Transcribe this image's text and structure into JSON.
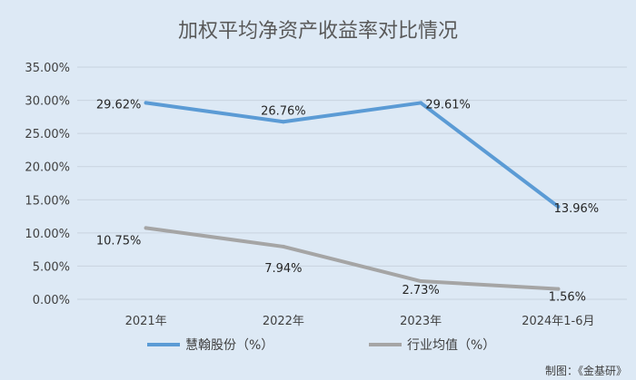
{
  "chart_data": {
    "type": "line",
    "title": "加权平均净资产收益率对比情况",
    "categories": [
      "2021年",
      "2022年",
      "2023年",
      "2024年1-6月"
    ],
    "ylim": [
      0,
      35
    ],
    "yticks": [
      "0.00%",
      "5.00%",
      "10.00%",
      "15.00%",
      "20.00%",
      "25.00%",
      "30.00%",
      "35.00%"
    ],
    "grid": true,
    "legend_position": "bottom",
    "series": [
      {
        "name": "慧翰股份（%）",
        "color": "#5b9bd5",
        "values": [
          29.62,
          26.76,
          29.61,
          13.96
        ],
        "labels": [
          "29.62%",
          "26.76%",
          "29.61%",
          "13.96%"
        ]
      },
      {
        "name": "行业均值（%）",
        "color": "#a5a5a5",
        "values": [
          10.75,
          7.94,
          2.73,
          1.56
        ],
        "labels": [
          "10.75%",
          "7.94%",
          "2.73%",
          "1.56%"
        ]
      }
    ],
    "credit": "制图：《金基研》"
  }
}
